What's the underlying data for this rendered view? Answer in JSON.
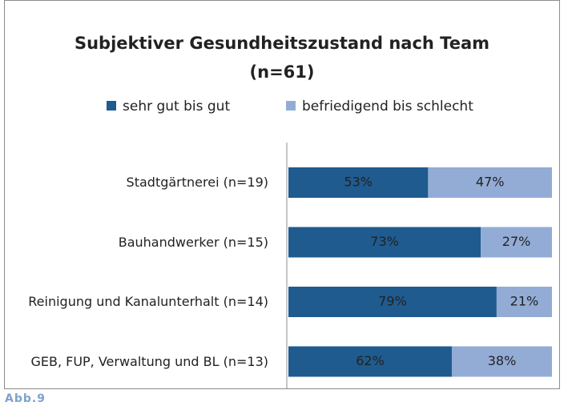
{
  "chart_data": {
    "type": "stacked_bar_horizontal",
    "title": "Subjektiver Gesundheitszustand nach Team",
    "subtitle": "(n=61)",
    "categories": [
      "Stadtgärtnerei (n=19)",
      "Bauhandwerker (n=15)",
      "Reinigung und Kanalunterhalt (n=14)",
      "GEB, FUP, Verwaltung und BL (n=13)"
    ],
    "series": [
      {
        "name": "sehr gut bis gut",
        "color": "#1f5b8e",
        "values": [
          53,
          73,
          79,
          62
        ],
        "value_labels": [
          "53%",
          "73%",
          "79%",
          "62%"
        ]
      },
      {
        "name": "befriedigend bis schlecht",
        "color": "#93acd6",
        "values": [
          47,
          27,
          21,
          38
        ],
        "value_labels": [
          "47%",
          "27%",
          "21%",
          "38%"
        ]
      }
    ],
    "xlim": [
      0,
      100
    ],
    "legend": "top",
    "caption": "Abb.9"
  }
}
